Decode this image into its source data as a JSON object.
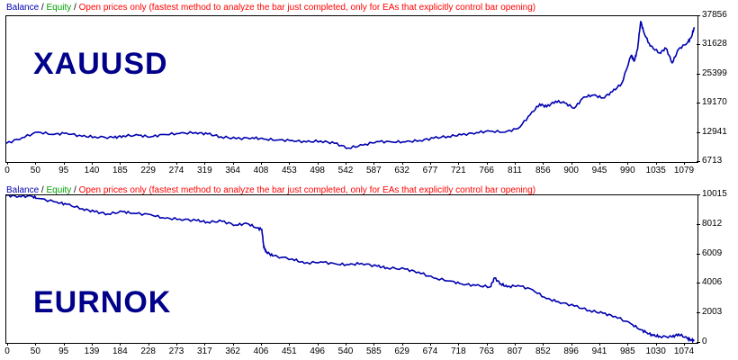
{
  "legend": {
    "balance": "Balance",
    "sep1": " / ",
    "equity": "Equity",
    "sep2": " / ",
    "note": "Open prices only (fastest method to analyze the bar just completed, only for EAs that explicitly control bar opening)"
  },
  "colors": {
    "balance": "#0000b0",
    "equity": "#00a000",
    "note": "#ff0000",
    "label": "#00008b"
  },
  "chart_data": [
    {
      "type": "line",
      "label": "XAUUSD",
      "x_ticks": [
        "0",
        "50",
        "95",
        "140",
        "185",
        "229",
        "274",
        "319",
        "364",
        "408",
        "453",
        "498",
        "542",
        "587",
        "632",
        "677",
        "721",
        "766",
        "811",
        "856",
        "900",
        "945",
        "990",
        "1035",
        "1079"
      ],
      "y_ticks": [
        "37856",
        "31628",
        "25399",
        "19170",
        "12941",
        "6713"
      ],
      "ylim": [
        6713,
        37856
      ],
      "xlim": [
        0,
        1095
      ],
      "series": [
        {
          "name": "Balance",
          "x": [
            0,
            25,
            50,
            75,
            95,
            120,
            140,
            170,
            185,
            210,
            229,
            250,
            274,
            300,
            319,
            340,
            364,
            390,
            408,
            430,
            453,
            475,
            498,
            520,
            542,
            565,
            587,
            610,
            632,
            655,
            677,
            700,
            721,
            745,
            766,
            790,
            811,
            830,
            845,
            856,
            870,
            885,
            900,
            915,
            930,
            945,
            960,
            975,
            990,
            995,
            1000,
            1005,
            1010,
            1020,
            1035,
            1045,
            1055,
            1065,
            1079,
            1085,
            1090
          ],
          "y": [
            10700,
            11900,
            13100,
            12600,
            12900,
            12200,
            12100,
            11900,
            12300,
            12400,
            12100,
            12600,
            12800,
            13000,
            12700,
            12100,
            11700,
            11900,
            11600,
            11400,
            11300,
            11000,
            11200,
            10700,
            9700,
            10300,
            11100,
            11000,
            11000,
            11300,
            11800,
            12200,
            12500,
            13000,
            13300,
            13100,
            13900,
            16800,
            19100,
            18500,
            19700,
            19300,
            18200,
            20600,
            21000,
            20400,
            21700,
            23500,
            29500,
            28300,
            30800,
            36800,
            34400,
            31500,
            30000,
            31000,
            27900,
            30800,
            32200,
            33300,
            35500
          ]
        }
      ]
    },
    {
      "type": "line",
      "label": "EURNOK",
      "x_ticks": [
        "0",
        "50",
        "95",
        "139",
        "184",
        "228",
        "273",
        "317",
        "362",
        "406",
        "451",
        "496",
        "540",
        "585",
        "629",
        "674",
        "718",
        "763",
        "807",
        "852",
        "896",
        "941",
        "985",
        "1030",
        "1074"
      ],
      "y_ticks": [
        "10015",
        "8012",
        "6009",
        "4006",
        "2003",
        "0"
      ],
      "ylim": [
        0,
        10015
      ],
      "xlim": [
        0,
        1090
      ],
      "series": [
        {
          "name": "Balance",
          "x": [
            0,
            20,
            40,
            50,
            80,
            95,
            120,
            139,
            160,
            184,
            200,
            228,
            250,
            273,
            300,
            317,
            340,
            362,
            380,
            395,
            403,
            406,
            410,
            420,
            451,
            470,
            496,
            520,
            540,
            560,
            585,
            600,
            629,
            650,
            674,
            700,
            718,
            740,
            763,
            770,
            780,
            790,
            807,
            830,
            852,
            870,
            896,
            920,
            941,
            960,
            985,
            1000,
            1010,
            1020,
            1030,
            1050,
            1060,
            1074,
            1080,
            1085
          ],
          "y": [
            10000,
            9950,
            9950,
            9800,
            9550,
            9400,
            9100,
            8900,
            8750,
            8900,
            8800,
            8700,
            8450,
            8400,
            8300,
            8200,
            8250,
            8000,
            8100,
            7800,
            7700,
            6500,
            6200,
            5900,
            5700,
            5400,
            5500,
            5350,
            5300,
            5400,
            5200,
            5100,
            5000,
            4800,
            4400,
            4200,
            4000,
            3900,
            3800,
            4400,
            4000,
            3800,
            3900,
            3600,
            3000,
            2800,
            2500,
            2200,
            2000,
            1800,
            1300,
            900,
            700,
            500,
            450,
            400,
            600,
            300,
            200,
            150
          ]
        }
      ]
    }
  ]
}
